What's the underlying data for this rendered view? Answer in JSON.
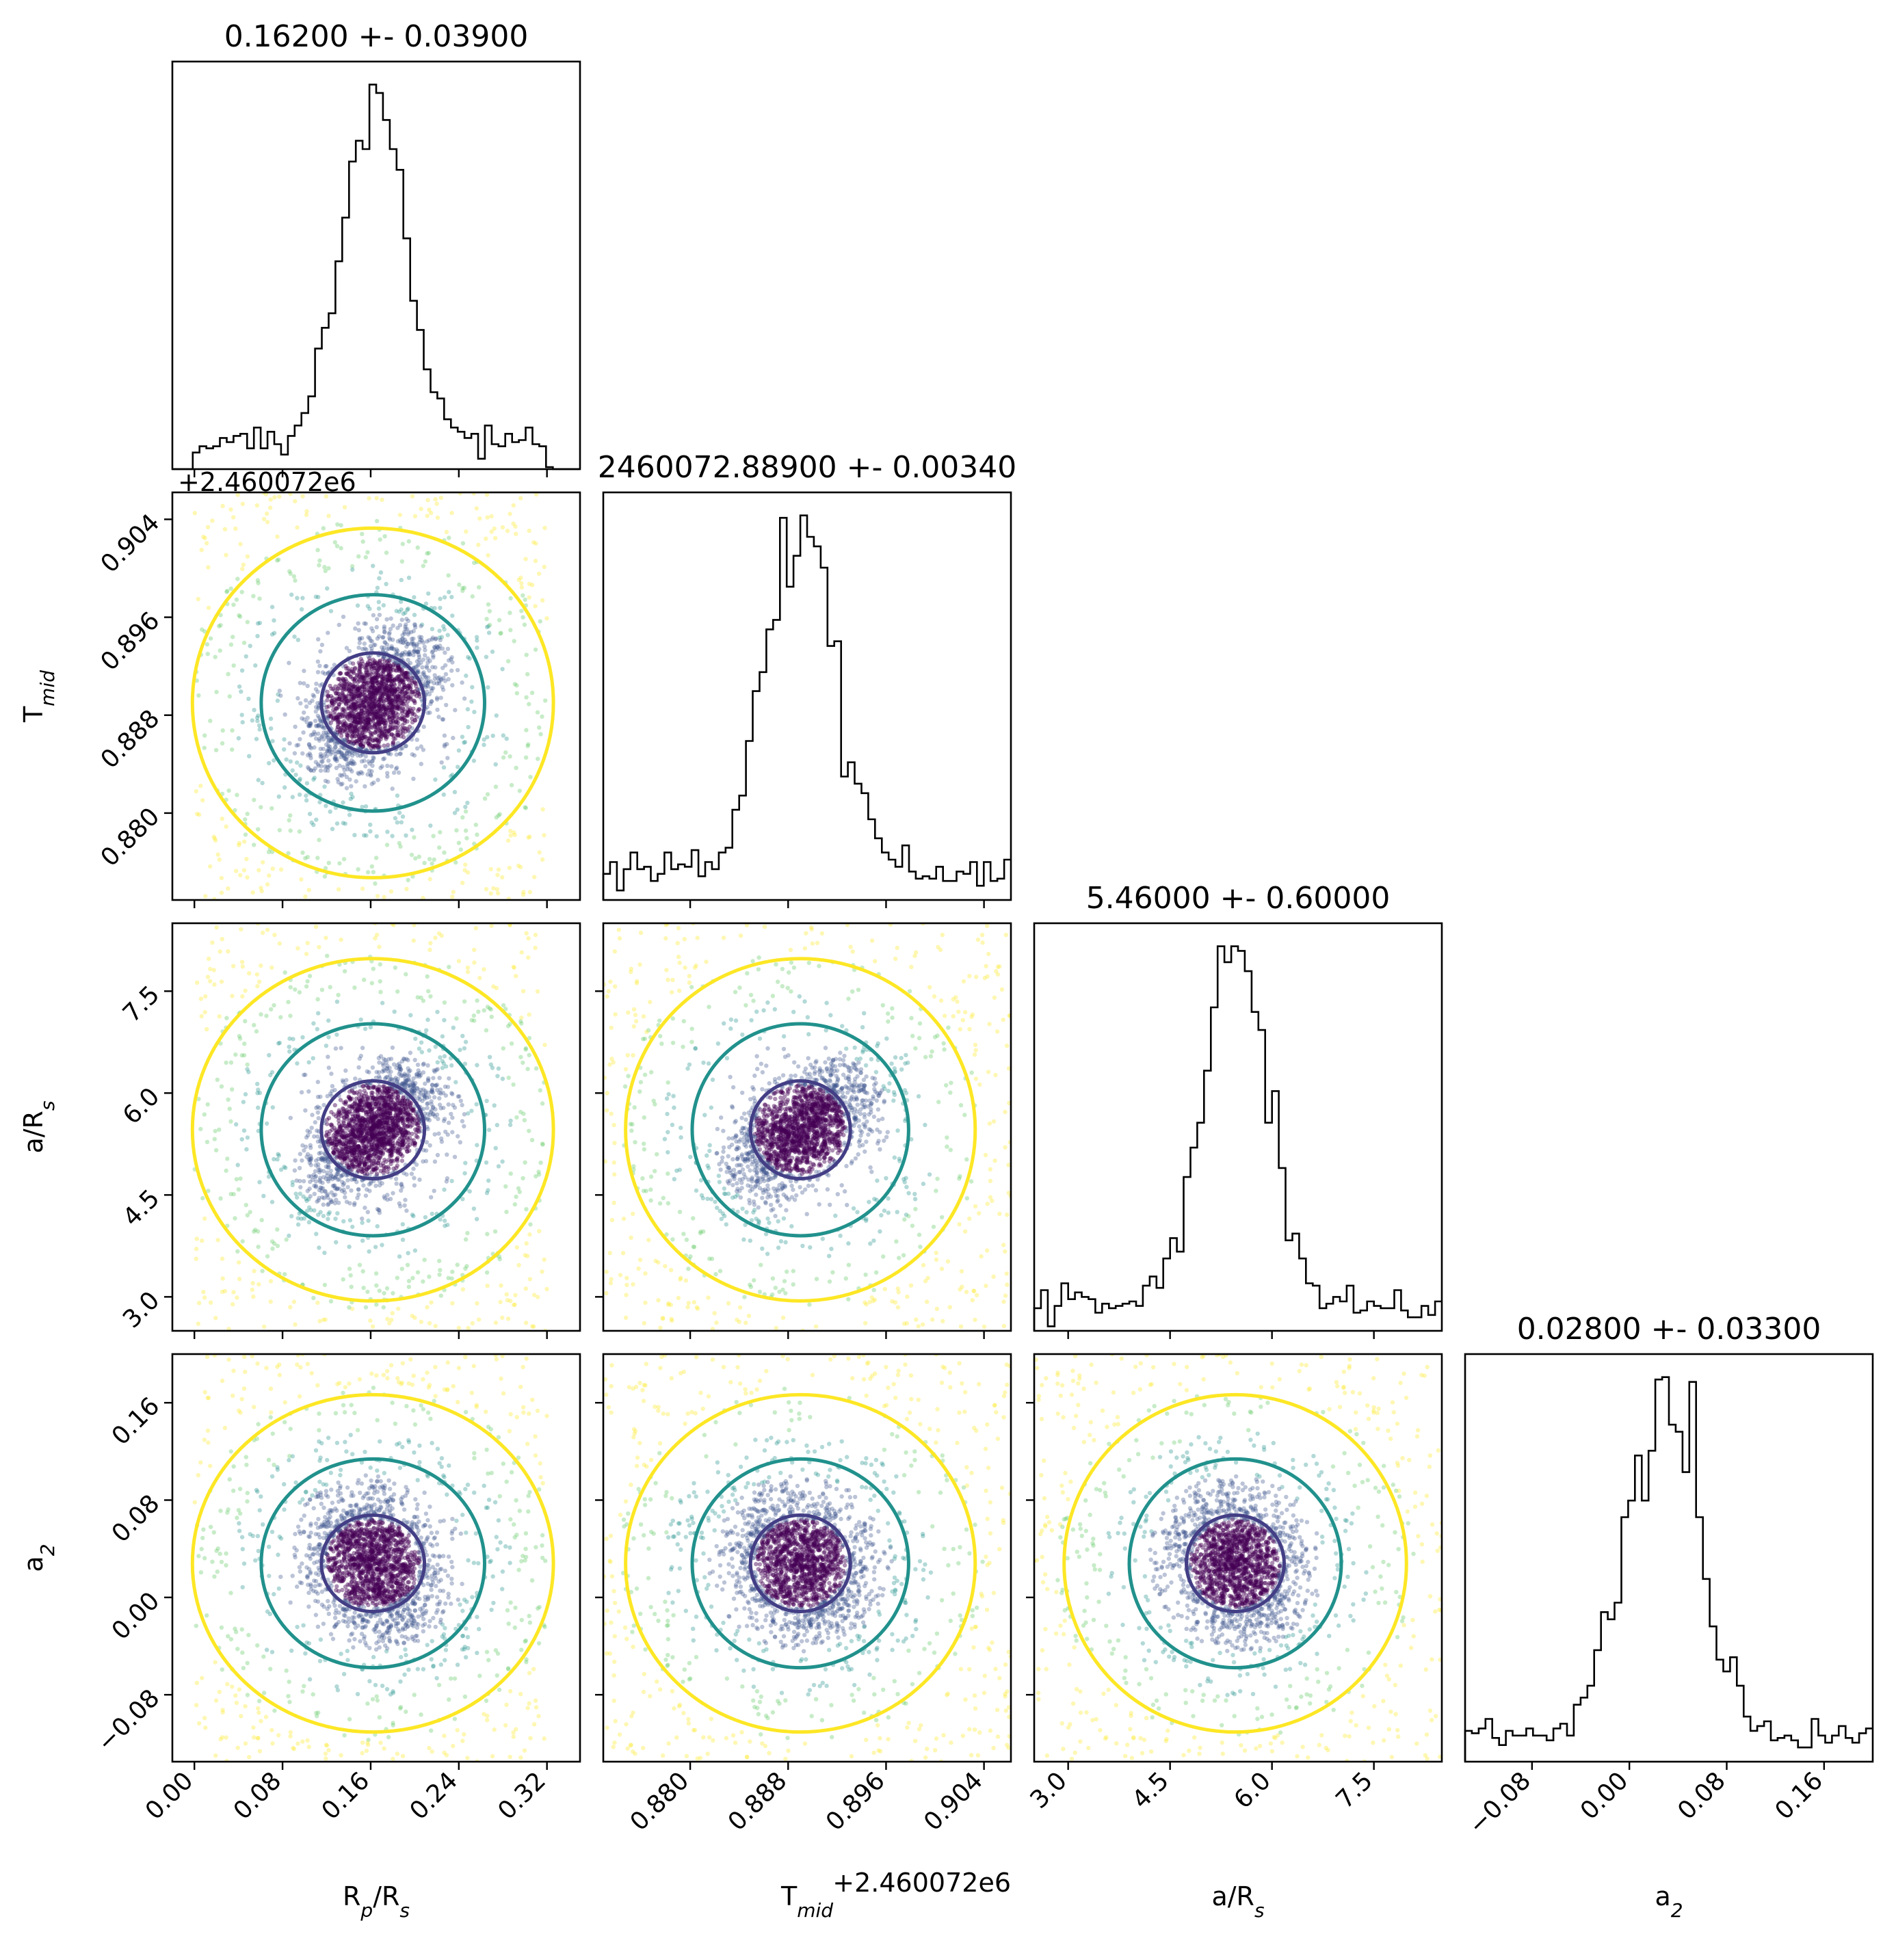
{
  "chart_data": {
    "type": "scatter",
    "layout": "corner",
    "parameters": [
      {
        "key": "rp",
        "label": "R<sub>p</sub>/R<sub>s</sub>",
        "label_main": "R",
        "label_sub": "p",
        "label_rest": "/R",
        "label_sub2": "s",
        "median": 0.162,
        "sigma": 0.039,
        "title": "0.16200 +- 0.03900",
        "range": [
          -0.02,
          0.35
        ],
        "ticks": [
          0.0,
          0.08,
          0.16,
          0.24,
          0.32
        ],
        "tick_labels": [
          "0.00",
          "0.08",
          "0.16",
          "0.24",
          "0.32"
        ],
        "offset": ""
      },
      {
        "key": "tmid",
        "label": "T_mid",
        "label_main": "T",
        "label_sub": "mid",
        "label_rest": "",
        "label_sub2": "",
        "median": 0.889,
        "sigma": 0.0034,
        "title": "2460072.88900 +- 0.00340",
        "range": [
          0.8729,
          0.9062
        ],
        "ticks": [
          0.88,
          0.888,
          0.896,
          0.904
        ],
        "tick_labels": [
          "0.880",
          "0.888",
          "0.896",
          "0.904"
        ],
        "offset": "+2.460072e6"
      },
      {
        "key": "ars",
        "label": "a/R_s",
        "label_main": "a/R",
        "label_sub": "s",
        "label_rest": "",
        "label_sub2": "",
        "median": 5.46,
        "sigma": 0.6,
        "title": "5.46000 +- 0.60000",
        "range": [
          2.5,
          8.5
        ],
        "ticks": [
          3.0,
          4.5,
          6.0,
          7.5
        ],
        "tick_labels": [
          "3.0",
          "4.5",
          "6.0",
          "7.5"
        ],
        "offset": ""
      },
      {
        "key": "a2",
        "label": "a_2",
        "label_main": "a",
        "label_sub": "2",
        "label_rest": "",
        "label_sub2": "",
        "median": 0.028,
        "sigma": 0.033,
        "title": "0.02800 +- 0.03300",
        "range": [
          -0.135,
          0.2
        ],
        "ticks": [
          -0.08,
          0.0,
          0.08,
          0.16
        ],
        "tick_labels": [
          "−0.08",
          "0.00",
          "0.08",
          "0.16"
        ],
        "offset": ""
      }
    ],
    "diagonal_histograms": [
      {
        "key": "rp",
        "bins": 60,
        "style": "step",
        "color": "#000000"
      },
      {
        "key": "tmid",
        "bins": 60,
        "style": "step",
        "color": "#000000"
      },
      {
        "key": "ars",
        "bins": 60,
        "style": "step",
        "color": "#000000"
      },
      {
        "key": "a2",
        "bins": 60,
        "style": "step",
        "color": "#000000"
      }
    ],
    "scatter_colormap": "viridis",
    "contour_levels": [
      {
        "level": "inner",
        "color": "#433e85"
      },
      {
        "level": "middle",
        "color": "#21918c"
      },
      {
        "level": "outer",
        "color": "#fde725"
      }
    ],
    "colors": {
      "viridis_dark": "#440154",
      "viridis_blue": "#3b528b",
      "viridis_teal": "#21918c",
      "viridis_green": "#5ec962",
      "viridis_yellow": "#fde725"
    },
    "grid": false,
    "legend": "none"
  }
}
